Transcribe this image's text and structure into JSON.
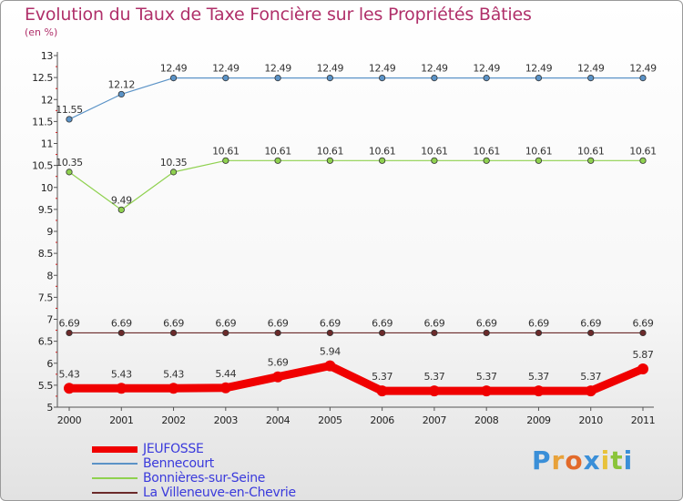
{
  "title": "Evolution du Taux de Taxe Foncière sur les Propriétés Bâties",
  "subtitle": "(en %)",
  "logo": {
    "text": "Proxiti",
    "letters": [
      {
        "ch": "P",
        "color": "#3a8fd8"
      },
      {
        "ch": "r",
        "color": "#e8a23a"
      },
      {
        "ch": "o",
        "color": "#e26a2a"
      },
      {
        "ch": "x",
        "color": "#3a8fd8"
      },
      {
        "ch": "i",
        "color": "#e8c23a"
      },
      {
        "ch": "t",
        "color": "#8ac43a"
      },
      {
        "ch": "i",
        "color": "#3a8fd8"
      }
    ]
  },
  "chart_data": {
    "type": "line",
    "title": "Evolution du Taux de Taxe Foncière sur les Propriétés Bâties",
    "ylabel": "(en %)",
    "xlabel": "",
    "ylim": [
      5,
      13
    ],
    "yticks": [
      "5",
      "5.5",
      "6",
      "6.5",
      "7",
      "7.5",
      "8",
      "8.5",
      "9",
      "9.5",
      "10",
      "10.5",
      "11",
      "11.5",
      "12",
      "12.5",
      "13"
    ],
    "categories": [
      "2000",
      "2001",
      "2002",
      "2003",
      "2004",
      "2005",
      "2006",
      "2007",
      "2008",
      "2009",
      "2010",
      "2011"
    ],
    "legend_position": "bottom-left",
    "series": [
      {
        "name": "Bennecourt",
        "color": "#5b93c7",
        "values": [
          11.55,
          12.12,
          12.49,
          12.49,
          12.49,
          12.49,
          12.49,
          12.49,
          12.49,
          12.49,
          12.49,
          12.49
        ],
        "labels": [
          "11.55",
          "12.12",
          "12.49",
          "12.49",
          "12.49",
          "12.49",
          "12.49",
          "12.49",
          "12.49",
          "12.49",
          "12.49",
          "12.49"
        ]
      },
      {
        "name": "Bonnières-sur-Seine",
        "color": "#8fd14f",
        "values": [
          10.35,
          9.49,
          10.35,
          10.61,
          10.61,
          10.61,
          10.61,
          10.61,
          10.61,
          10.61,
          10.61,
          10.61
        ],
        "labels": [
          "10.35",
          "9.49",
          "10.35",
          "10.61",
          "10.61",
          "10.61",
          "10.61",
          "10.61",
          "10.61",
          "10.61",
          "10.61",
          "10.61"
        ]
      },
      {
        "name": "La Villeneuve-en-Chevrie",
        "color": "#6b2a2a",
        "values": [
          6.69,
          6.69,
          6.69,
          6.69,
          6.69,
          6.69,
          6.69,
          6.69,
          6.69,
          6.69,
          6.69,
          6.69
        ],
        "labels": [
          "6.69",
          "6.69",
          "6.69",
          "6.69",
          "6.69",
          "6.69",
          "6.69",
          "6.69",
          "6.69",
          "6.69",
          "6.69",
          "6.69"
        ]
      },
      {
        "name": "JEUFOSSE",
        "color": "#f00000",
        "values": [
          5.43,
          5.43,
          5.43,
          5.44,
          5.69,
          5.94,
          5.37,
          5.37,
          5.37,
          5.37,
          5.37,
          5.87
        ],
        "labels": [
          "5.43",
          "5.43",
          "5.43",
          "5.44",
          "5.69",
          "5.94",
          "5.37",
          "5.37",
          "5.37",
          "5.37",
          "5.37",
          "5.87"
        ]
      }
    ],
    "legend": [
      "JEUFOSSE",
      "Bennecourt",
      "Bonnières-sur-Seine",
      "La Villeneuve-en-Chevrie"
    ]
  }
}
